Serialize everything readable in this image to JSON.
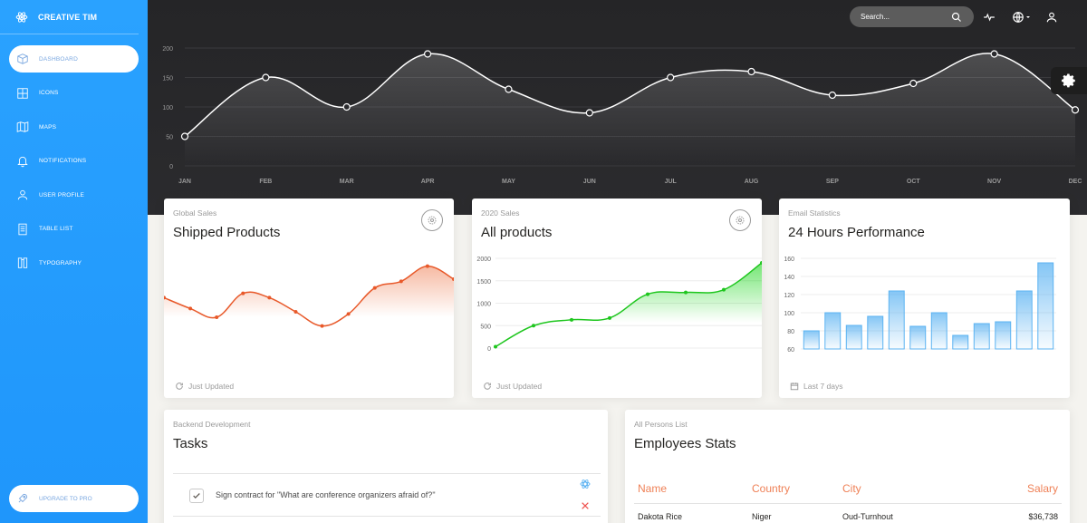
{
  "brand": {
    "name": "CREATIVE TIM"
  },
  "sidebar": {
    "items": [
      {
        "label": "DASHBOARD",
        "icon": "dashboard-icon",
        "active": true
      },
      {
        "label": "ICONS",
        "icon": "atom-icon"
      },
      {
        "label": "MAPS",
        "icon": "map-icon"
      },
      {
        "label": "NOTIFICATIONS",
        "icon": "bell-icon"
      },
      {
        "label": "USER PROFILE",
        "icon": "user-icon"
      },
      {
        "label": "TABLE LIST",
        "icon": "list-icon"
      },
      {
        "label": "TYPOGRAPHY",
        "icon": "book-icon"
      }
    ],
    "upgrade_label": "UPGRADE TO PRO"
  },
  "header": {
    "search_placeholder": "Search...",
    "icons": [
      "search-icon",
      "activity-icon",
      "globe-icon",
      "user-icon"
    ]
  },
  "colors": {
    "sidebar": "#1d8cf8",
    "accent_orange": "#ef8157",
    "accent_green": "#00d100",
    "accent_blue": "#5cb3f2"
  },
  "chart_data": [
    {
      "type": "line",
      "title": "",
      "categories": [
        "JAN",
        "FEB",
        "MAR",
        "APR",
        "MAY",
        "JUN",
        "JUL",
        "AUG",
        "SEP",
        "OCT",
        "NOV",
        "DEC"
      ],
      "values": [
        50,
        150,
        100,
        190,
        130,
        90,
        150,
        160,
        120,
        140,
        190,
        95
      ],
      "yticks": [
        0,
        50,
        100,
        150,
        200
      ],
      "ylim": [
        0,
        200
      ],
      "grid": true
    },
    {
      "type": "line",
      "title": "Shipped Products",
      "values": [
        38,
        28,
        20,
        42,
        38,
        25,
        12,
        23,
        47,
        53,
        67,
        55
      ]
    },
    {
      "type": "line",
      "title": "All products",
      "yticks": [
        0,
        500,
        1000,
        1500,
        2000
      ],
      "ylim": [
        0,
        2000
      ],
      "values": [
        30,
        500,
        630,
        670,
        1200,
        1240,
        1300,
        1900
      ]
    },
    {
      "type": "bar",
      "title": "24 Hours Performance",
      "yticks": [
        60,
        80,
        100,
        120,
        140,
        160
      ],
      "ylim": [
        60,
        160
      ],
      "values": [
        80,
        100,
        86,
        96,
        124,
        85,
        100,
        75,
        88,
        90,
        124,
        155
      ]
    }
  ],
  "cards": [
    {
      "category": "Global Sales",
      "title": "Shipped Products",
      "footer": "Just Updated"
    },
    {
      "category": "2020 Sales",
      "title": "All products",
      "footer": "Just Updated"
    },
    {
      "category": "Email Statistics",
      "title": "24 Hours Performance",
      "footer": "Last 7 days"
    }
  ],
  "tasks": {
    "category": "Backend Development",
    "title": "Tasks",
    "items": [
      {
        "text": "Sign contract for \"What are conference organizers afraid of?\"",
        "checked": true
      }
    ]
  },
  "employees": {
    "category": "All Persons List",
    "title": "Employees Stats",
    "columns": [
      "Name",
      "Country",
      "City",
      "Salary"
    ],
    "rows": [
      [
        "Dakota Rice",
        "Niger",
        "Oud-Turnhout",
        "$36,738"
      ]
    ]
  }
}
